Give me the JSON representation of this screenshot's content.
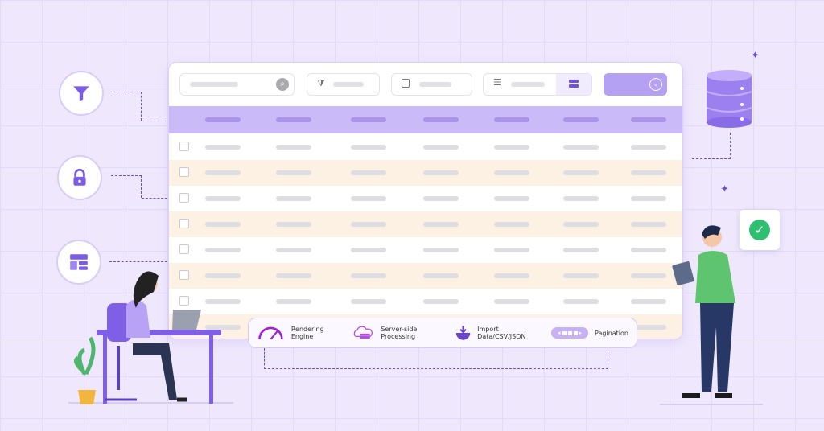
{
  "features": [
    {
      "icon": "speedometer-icon",
      "label": "Rendering Engine"
    },
    {
      "icon": "cloud-server-icon",
      "label": "Server-side Processing"
    },
    {
      "icon": "import-box-icon",
      "label": "Import Data/CSV/JSON"
    },
    {
      "icon": "pagination-icon",
      "label": "Pagination"
    }
  ],
  "side_icons": [
    "filter-icon",
    "lock-icon",
    "layout-icon"
  ],
  "colors": {
    "accent": "#8b6cf0",
    "header": "#cbbaf8",
    "row_alt": "#fcf1e2",
    "background": "#efe8fc",
    "success": "#2fbf71"
  }
}
